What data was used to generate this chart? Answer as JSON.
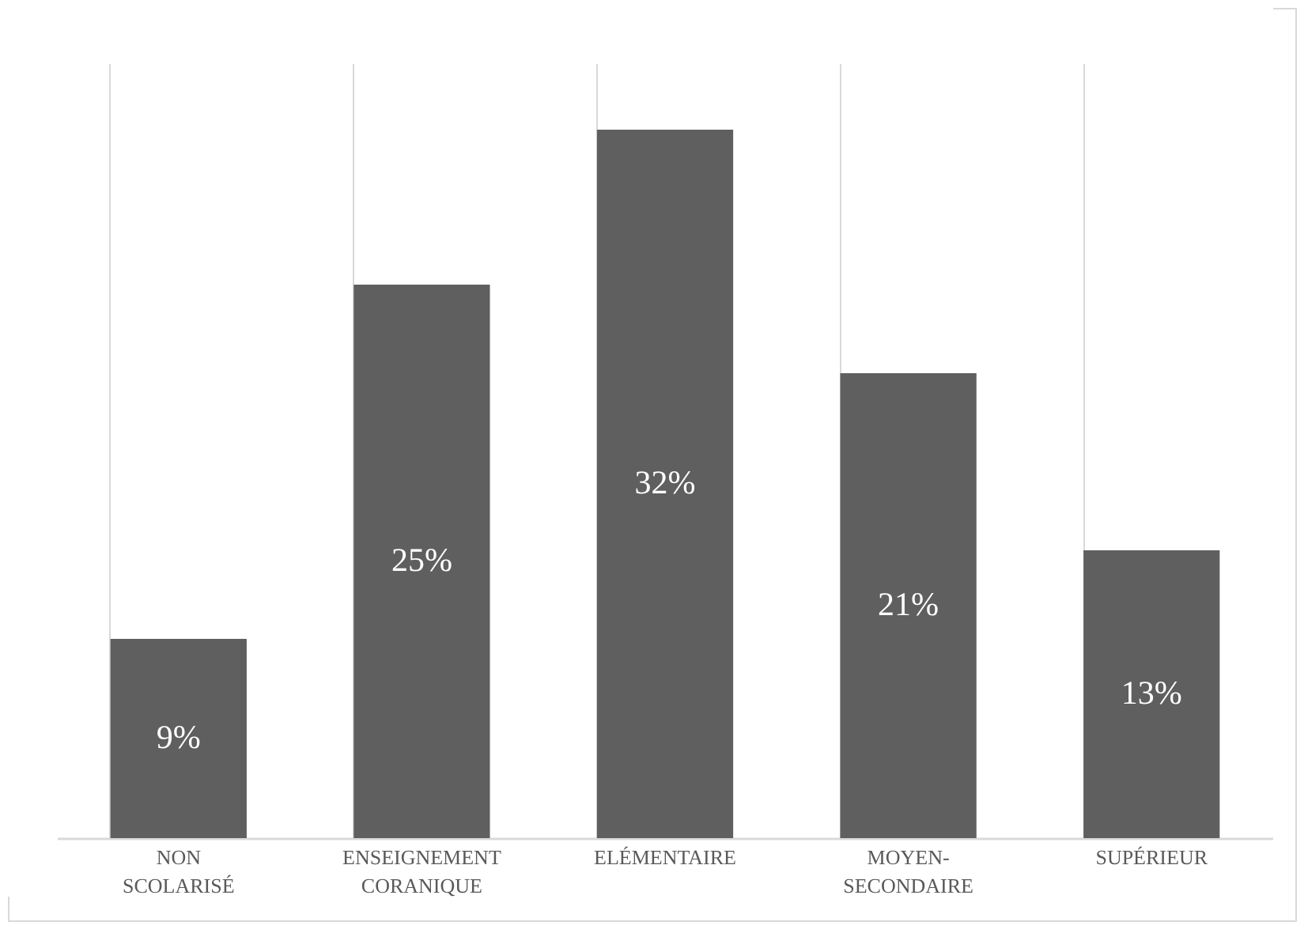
{
  "chart_data": {
    "type": "bar",
    "categories": [
      "NON SCOLARISÉ",
      "ENSEIGNEMENT CORANIQUE",
      "ELÉMENTAIRE",
      "MOYEN-SECONDAIRE",
      "SUPÉRIEUR"
    ],
    "values": [
      9,
      25,
      32,
      21,
      13
    ],
    "value_labels": [
      "9%",
      "25%",
      "32%",
      "21%",
      "13%"
    ],
    "color": "#5f5f5f",
    "grid": "x"
  }
}
